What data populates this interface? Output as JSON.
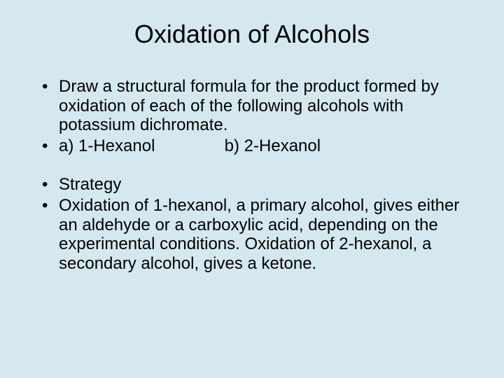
{
  "background_color": "#d6e8ef",
  "text_color": "#000000",
  "title": "Oxidation of Alcohols",
  "title_fontsize": 36,
  "body_fontsize": 24,
  "bullets": {
    "b1": "Draw a structural formula for the product formed by oxidation of each of the following alcohols with potassium dichromate.",
    "b2_a": "a) 1-Hexanol",
    "b2_b": "b) 2-Hexanol",
    "b3": "Strategy",
    "b4": "Oxidation of 1-hexanol, a primary alcohol, gives either an aldehyde or a carboxylic acid, depending on the experimental conditions. Oxidation of 2-hexanol, a secondary alcohol, gives a ketone."
  }
}
